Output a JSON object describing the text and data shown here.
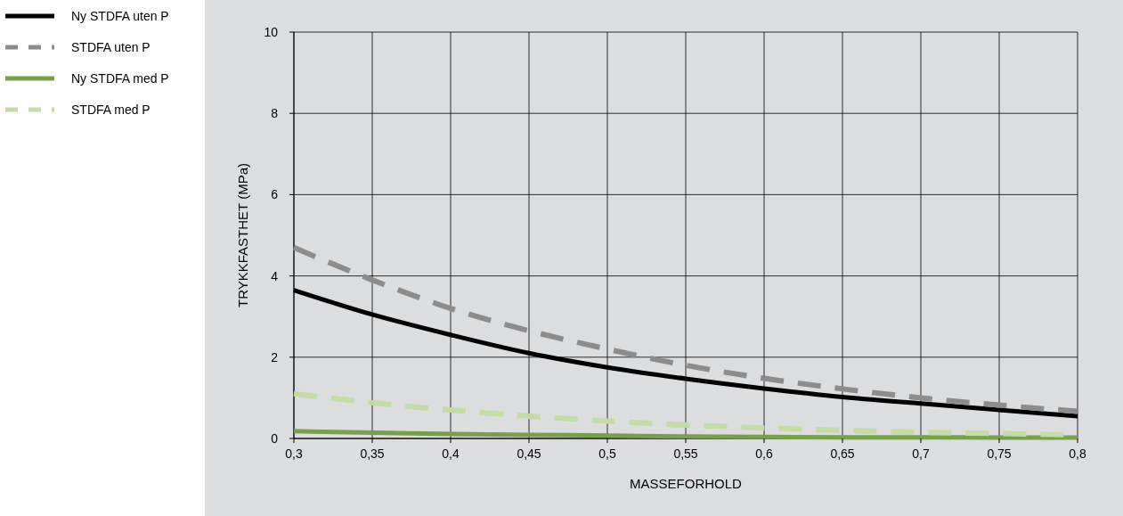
{
  "chart_data": {
    "type": "line",
    "xlabel": "MASSEFORHOLD",
    "ylabel": "TRYKKFASTHET (MPa)",
    "x": [
      0.3,
      0.35,
      0.4,
      0.45,
      0.5,
      0.55,
      0.6,
      0.65,
      0.7,
      0.75,
      0.8
    ],
    "series": [
      {
        "name": "Ny STDFA uten P",
        "color": "#000000",
        "line_style": "solid",
        "values": [
          3.65,
          3.05,
          2.55,
          2.1,
          1.75,
          1.47,
          1.23,
          1.02,
          0.86,
          0.7,
          0.55
        ]
      },
      {
        "name": "STDFA uten P",
        "color": "#8c8c8c",
        "line_style": "dashed",
        "values": [
          4.7,
          3.9,
          3.2,
          2.65,
          2.2,
          1.8,
          1.48,
          1.22,
          1.0,
          0.82,
          0.67
        ]
      },
      {
        "name": "Ny STDFA med P",
        "color": "#76a04a",
        "line_style": "solid",
        "values": [
          0.18,
          0.14,
          0.11,
          0.09,
          0.07,
          0.05,
          0.04,
          0.03,
          0.03,
          0.02,
          0.02
        ]
      },
      {
        "name": "STDFA med P",
        "color": "#c3dba4",
        "line_style": "dashed",
        "values": [
          1.1,
          0.88,
          0.7,
          0.55,
          0.43,
          0.33,
          0.26,
          0.2,
          0.15,
          0.12,
          0.09
        ]
      }
    ],
    "xlim": [
      0.3,
      0.8
    ],
    "xticks": [
      {
        "value": 0.3,
        "label": "0,3"
      },
      {
        "value": 0.35,
        "label": "0,35"
      },
      {
        "value": 0.4,
        "label": "0,4"
      },
      {
        "value": 0.45,
        "label": "0,45"
      },
      {
        "value": 0.5,
        "label": "0,5"
      },
      {
        "value": 0.55,
        "label": "0,55"
      },
      {
        "value": 0.6,
        "label": "0,6"
      },
      {
        "value": 0.65,
        "label": "0,65"
      },
      {
        "value": 0.7,
        "label": "0,7"
      },
      {
        "value": 0.75,
        "label": "0,75"
      },
      {
        "value": 0.8,
        "label": "0,8"
      }
    ],
    "ylim": [
      0,
      10
    ],
    "yticks": [
      0,
      2,
      4,
      6,
      8,
      10
    ],
    "grid": true,
    "legend": "left",
    "marker": "none"
  }
}
